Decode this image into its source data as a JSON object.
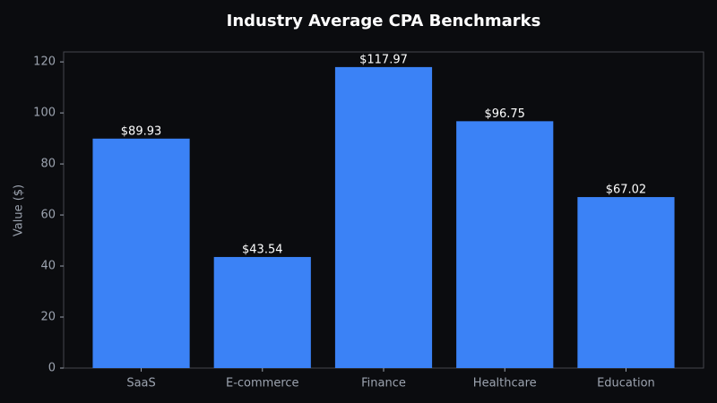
{
  "chart_data": {
    "type": "bar",
    "title": "Industry Average CPA Benchmarks",
    "y_label": "Value ($)",
    "categories": [
      "SaaS",
      "E-commerce",
      "Finance",
      "Healthcare",
      "Education"
    ],
    "values": [
      89.93,
      43.54,
      117.97,
      96.75,
      67.02
    ],
    "value_labels": [
      "$89.93",
      "$43.54",
      "$117.97",
      "$96.75",
      "$67.02"
    ],
    "color": "#3b82f6",
    "ylim": [
      0,
      123.9
    ],
    "yticks": [
      0,
      20,
      40,
      60,
      80,
      100,
      120
    ],
    "grid": false
  }
}
